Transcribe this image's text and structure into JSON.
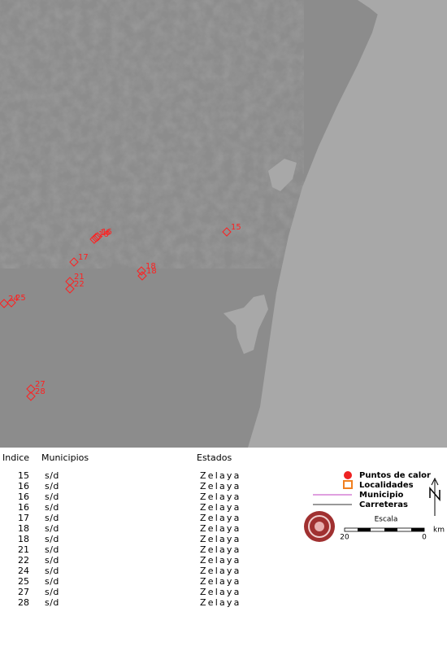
{
  "map": {
    "labels": [
      "15",
      "16",
      "16",
      "16",
      "17",
      "18",
      "18",
      "21",
      "22",
      "24",
      "25",
      "27",
      "28"
    ]
  },
  "table": {
    "headers": [
      "Indice",
      "Municipios",
      "Estados"
    ],
    "rows": [
      [
        "15",
        "s/d",
        "Zelaya"
      ],
      [
        "16",
        "s/d",
        "Zelaya"
      ],
      [
        "16",
        "s/d",
        "Zelaya"
      ],
      [
        "16",
        "s/d",
        "Zelaya"
      ],
      [
        "17",
        "s/d",
        "Zelaya"
      ],
      [
        "18",
        "s/d",
        "Zelaya"
      ],
      [
        "18",
        "s/d",
        "Zelaya"
      ],
      [
        "21",
        "s/d",
        "Zelaya"
      ],
      [
        "22",
        "s/d",
        "Zelaya"
      ],
      [
        "24",
        "s/d",
        "Zelaya"
      ],
      [
        "25",
        "s/d",
        "Zelaya"
      ],
      [
        "27",
        "s/d",
        "Zelaya"
      ],
      [
        "28",
        "s/d",
        "Zelaya"
      ]
    ]
  },
  "legend": {
    "items": [
      "Puntos de calor",
      "Localidades",
      "Municipio",
      "Carreteras"
    ]
  },
  "scale": {
    "title": "Escala",
    "labels": [
      "20",
      "0"
    ],
    "unit": "km"
  }
}
